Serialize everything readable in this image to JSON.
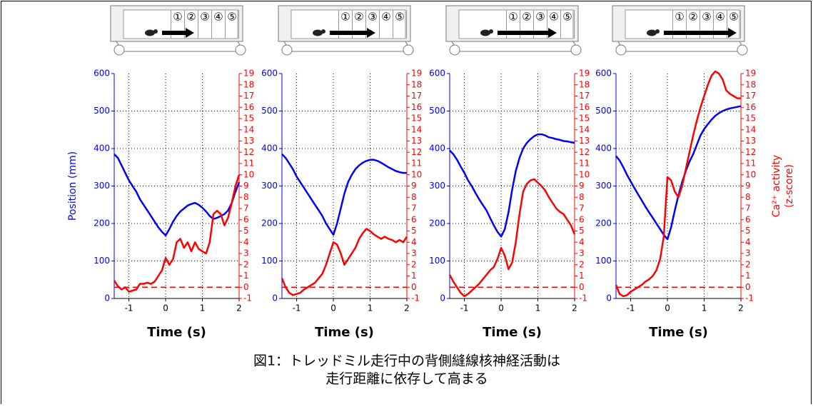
{
  "caption": [
    "図1：トレッドミル走行中の背側縫線核神経活動は",
    "走行距離に依存して高まる"
  ],
  "treadmill_labels": [
    "①",
    "②",
    "③",
    "④",
    "⑤"
  ],
  "chart_data": [
    {
      "type": "line",
      "xlabel": "Time (s)",
      "ylabel": "Position (mm)",
      "xlim": [
        -1.4,
        2
      ],
      "xticks": [
        -1,
        0,
        1,
        2
      ],
      "ylim": [
        0,
        600
      ],
      "yticks": [
        0,
        100,
        200,
        300,
        400,
        500,
        600
      ],
      "y2lim": [
        -1,
        19
      ],
      "y2ticks": [
        -1,
        0,
        1,
        2,
        3,
        4,
        5,
        6,
        7,
        8,
        9,
        10,
        11,
        12,
        13,
        14,
        15,
        16,
        17,
        18,
        19
      ],
      "grid": true,
      "hline": {
        "axis": "y2",
        "value": 0,
        "color": "#ff0000"
      },
      "x": [
        -1.4,
        -1.3,
        -1.2,
        -1.1,
        -1.0,
        -0.9,
        -0.8,
        -0.7,
        -0.6,
        -0.5,
        -0.4,
        -0.3,
        -0.2,
        -0.1,
        0,
        0.1,
        0.2,
        0.3,
        0.4,
        0.5,
        0.6,
        0.7,
        0.8,
        0.9,
        1.0,
        1.1,
        1.2,
        1.3,
        1.4,
        1.5,
        1.6,
        1.7,
        1.8,
        1.9,
        2.0
      ],
      "series": [
        {
          "color": "#0000ff",
          "values": [
            385,
            375,
            355,
            335,
            315,
            300,
            285,
            265,
            250,
            235,
            220,
            205,
            190,
            178,
            168,
            185,
            205,
            220,
            232,
            240,
            248,
            252,
            255,
            250,
            242,
            232,
            220,
            212,
            215,
            220,
            225,
            235,
            255,
            285,
            310
          ]
        },
        {
          "color": "#ff0000",
          "axis": "y2",
          "values": [
            0.6,
            0.1,
            -0.2,
            0,
            -0.4,
            -0.3,
            -0.2,
            0.3,
            0.3,
            0.4,
            0.3,
            0.5,
            1.0,
            1.5,
            2.6,
            2.0,
            2.5,
            4.0,
            4.3,
            3.5,
            4.0,
            3.2,
            4.0,
            3.4,
            3.2,
            3.0,
            4.0,
            6.5,
            6.8,
            6.5,
            5.5,
            6.2,
            7.5,
            9.0,
            10.0
          ]
        }
      ]
    },
    {
      "type": "line",
      "xlabel": "Time (s)",
      "xlim": [
        -1.4,
        2
      ],
      "xticks": [
        -1,
        0,
        1,
        2
      ],
      "ylim": [
        0,
        600
      ],
      "yticks": [
        0,
        100,
        200,
        300,
        400,
        500,
        600
      ],
      "y2lim": [
        -1,
        19
      ],
      "y2ticks": [
        -1,
        0,
        1,
        2,
        3,
        4,
        5,
        6,
        7,
        8,
        9,
        10,
        11,
        12,
        13,
        14,
        15,
        16,
        17,
        18,
        19
      ],
      "grid": true,
      "hline": {
        "axis": "y2",
        "value": 0,
        "color": "#ff0000"
      },
      "x": [
        -1.4,
        -1.3,
        -1.2,
        -1.1,
        -1.0,
        -0.9,
        -0.8,
        -0.7,
        -0.6,
        -0.5,
        -0.4,
        -0.3,
        -0.2,
        -0.1,
        0,
        0.1,
        0.2,
        0.3,
        0.4,
        0.5,
        0.6,
        0.7,
        0.8,
        0.9,
        1.0,
        1.1,
        1.2,
        1.3,
        1.4,
        1.5,
        1.6,
        1.7,
        1.8,
        1.9,
        2.0
      ],
      "series": [
        {
          "color": "#0000ff",
          "values": [
            385,
            375,
            360,
            345,
            325,
            310,
            295,
            280,
            265,
            250,
            235,
            220,
            200,
            185,
            170,
            200,
            240,
            280,
            310,
            330,
            345,
            355,
            362,
            367,
            370,
            370,
            367,
            362,
            356,
            350,
            345,
            340,
            337,
            335,
            335
          ]
        },
        {
          "color": "#ff0000",
          "axis": "y2",
          "values": [
            0.8,
            0,
            -0.5,
            -0.7,
            -0.6,
            -0.5,
            -0.2,
            0,
            0.2,
            0.4,
            0.8,
            1.2,
            2.0,
            3.0,
            4.0,
            3.8,
            3.0,
            2.0,
            2.5,
            3.0,
            3.5,
            4.3,
            4.8,
            5.2,
            5.0,
            4.7,
            4.5,
            4.3,
            4.5,
            4.3,
            4.2,
            4.0,
            4.2,
            4.0,
            4.5
          ]
        }
      ]
    },
    {
      "type": "line",
      "xlabel": "Time (s)",
      "xlim": [
        -1.4,
        2
      ],
      "xticks": [
        -1,
        0,
        1,
        2
      ],
      "ylim": [
        0,
        600
      ],
      "yticks": [
        0,
        100,
        200,
        300,
        400,
        500,
        600
      ],
      "y2lim": [
        -1,
        19
      ],
      "y2ticks": [
        -1,
        0,
        1,
        2,
        3,
        4,
        5,
        6,
        7,
        8,
        9,
        10,
        11,
        12,
        13,
        14,
        15,
        16,
        17,
        18,
        19
      ],
      "grid": true,
      "hline": {
        "axis": "y2",
        "value": 0,
        "color": "#ff0000"
      },
      "x": [
        -1.4,
        -1.3,
        -1.2,
        -1.1,
        -1.0,
        -0.9,
        -0.8,
        -0.7,
        -0.6,
        -0.5,
        -0.4,
        -0.3,
        -0.2,
        -0.1,
        0,
        0.1,
        0.2,
        0.3,
        0.4,
        0.5,
        0.6,
        0.7,
        0.8,
        0.9,
        1.0,
        1.1,
        1.2,
        1.3,
        1.4,
        1.5,
        1.6,
        1.7,
        1.8,
        1.9,
        2.0
      ],
      "series": [
        {
          "color": "#0000ff",
          "values": [
            395,
            385,
            370,
            352,
            335,
            315,
            300,
            282,
            265,
            250,
            235,
            215,
            195,
            178,
            165,
            185,
            230,
            290,
            340,
            375,
            400,
            415,
            425,
            433,
            438,
            438,
            435,
            430,
            428,
            425,
            423,
            420,
            419,
            417,
            415
          ]
        },
        {
          "color": "#ff0000",
          "axis": "y2",
          "values": [
            1.1,
            0.5,
            0,
            -0.5,
            -0.8,
            -0.6,
            -0.3,
            0,
            0.3,
            0.7,
            1.1,
            1.5,
            1.8,
            2.5,
            3.5,
            2.8,
            1.6,
            2.2,
            4.0,
            6.5,
            8.5,
            9.2,
            9.5,
            9.6,
            9.3,
            9.0,
            8.6,
            8.0,
            7.5,
            7.0,
            6.7,
            6.5,
            6.0,
            5.5,
            4.7
          ]
        }
      ]
    },
    {
      "type": "line",
      "xlabel": "Time (s)",
      "y2label": [
        "Ca²⁺ activity",
        "(z-score)"
      ],
      "xlim": [
        -1.4,
        2
      ],
      "xticks": [
        -1,
        0,
        1,
        2
      ],
      "ylim": [
        0,
        600
      ],
      "yticks": [
        0,
        100,
        200,
        300,
        400,
        500,
        600
      ],
      "y2lim": [
        -1,
        19
      ],
      "y2ticks": [
        -1,
        0,
        1,
        2,
        3,
        4,
        5,
        6,
        7,
        8,
        9,
        10,
        11,
        12,
        13,
        14,
        15,
        16,
        17,
        18,
        19
      ],
      "grid": true,
      "hline": {
        "axis": "y2",
        "value": 0,
        "color": "#ff0000"
      },
      "x": [
        -1.4,
        -1.3,
        -1.2,
        -1.1,
        -1.0,
        -0.9,
        -0.8,
        -0.7,
        -0.6,
        -0.5,
        -0.4,
        -0.3,
        -0.2,
        -0.1,
        0,
        0.1,
        0.2,
        0.3,
        0.4,
        0.5,
        0.6,
        0.7,
        0.8,
        0.9,
        1.0,
        1.1,
        1.2,
        1.3,
        1.4,
        1.5,
        1.6,
        1.7,
        1.8,
        1.9,
        2.0
      ],
      "series": [
        {
          "color": "#0000ff",
          "values": [
            380,
            368,
            350,
            330,
            312,
            295,
            278,
            262,
            245,
            230,
            215,
            200,
            185,
            170,
            158,
            190,
            235,
            275,
            310,
            340,
            365,
            385,
            410,
            435,
            452,
            465,
            477,
            487,
            494,
            500,
            504,
            507,
            509,
            511,
            513
          ]
        },
        {
          "color": "#ff0000",
          "axis": "y2",
          "values": [
            0.2,
            -0.6,
            -0.8,
            -0.7,
            -0.4,
            -0.2,
            0,
            0.2,
            0.5,
            0.7,
            1.0,
            1.5,
            2.5,
            4.5,
            9.8,
            9.5,
            8.5,
            8.0,
            9.0,
            10.5,
            12.0,
            13.5,
            14.8,
            16.0,
            17.0,
            18.0,
            18.8,
            19.2,
            19.0,
            18.5,
            17.5,
            17.2,
            17.0,
            16.8,
            16.8
          ]
        }
      ]
    }
  ]
}
